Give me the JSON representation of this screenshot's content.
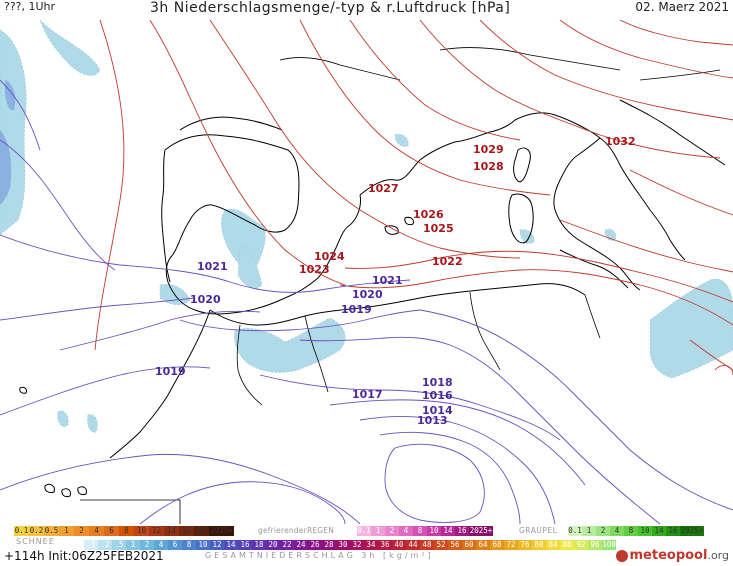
{
  "header": {
    "run_label": "???, 1Uhr",
    "title": "3h Niederschlagsmenge/-typ & r.Luftdruck [hPa]",
    "date": "02. Maerz 2021"
  },
  "footer": {
    "run_info": "+114h Init:06Z25FEB2021",
    "brand": "meteopool",
    "brand_suffix": ".org"
  },
  "legend": {
    "snow_label": "SCHNEE",
    "snow_values": [
      "0.1",
      "0.2",
      "0.5",
      "1",
      "2",
      "4",
      "6",
      "8",
      "10",
      "12",
      "14",
      "16",
      "18",
      "2025+"
    ],
    "freezing_rain_label": "gefrierenderREGEN",
    "freezing_rain_values": [
      "0.1",
      "1",
      "2",
      "4",
      "8",
      "10",
      "14",
      "16",
      "2025+"
    ],
    "graupel_label": "GRAUPEL",
    "graupel_values": [
      "0.1",
      "1",
      "2",
      "4",
      "8",
      "10",
      "14",
      "16",
      "2025+"
    ],
    "total_label": "GESAMTNIEDERSCHLAG 3h [kg/m²]",
    "total_values": [
      ".1",
      ".2",
      ".5",
      "1",
      "2",
      "4",
      "6",
      "8",
      "10",
      "12",
      "14",
      "16",
      "18",
      "20",
      "22",
      "24",
      "26",
      "28",
      "30",
      "32",
      "34",
      "36",
      "40",
      "44",
      "48",
      "52",
      "56",
      "60",
      "64",
      "68",
      "72",
      "76",
      "80",
      "84",
      "88",
      "92",
      "96",
      "100"
    ],
    "colors": {
      "snow": [
        "#f4d03f",
        "#f5c242",
        "#f3b13b",
        "#f0a030",
        "#ec8f28",
        "#e67e22",
        "#dc6b1e",
        "#d35400",
        "#c0451a",
        "#a93816",
        "#8e2f13",
        "#782610",
        "#5e1e0c",
        "#3d1408"
      ],
      "freezing": [
        "#f5b7e0",
        "#ef9fd6",
        "#e884cb",
        "#e06ac0",
        "#d651b5",
        "#c73ca6",
        "#b52a94",
        "#a01c80",
        "#85116b"
      ],
      "graupel": [
        "#d5f5c0",
        "#b8eca0",
        "#9be280",
        "#7ed860",
        "#62cd44",
        "#46c22c",
        "#33ab1c",
        "#249012",
        "#17750a"
      ],
      "total": [
        "#d6eef7",
        "#b8e2f0",
        "#9dd4ea",
        "#83c6e4",
        "#6fb7de",
        "#5ea6d8",
        "#5394d2",
        "#4d82cc",
        "#4a70c6",
        "#4a5ec0",
        "#4e4dba",
        "#5540b4",
        "#5e34ae",
        "#6a2aa8",
        "#7521a0",
        "#7f1a96",
        "#89148a",
        "#92107c",
        "#9b0e6e",
        "#a4105f",
        "#ad1450",
        "#b51a42",
        "#bc2236",
        "#c32c2c",
        "#ca3a24",
        "#d04a1e",
        "#d65c1a",
        "#db6e18",
        "#e08118",
        "#e4941a",
        "#e8a71e",
        "#ebba26",
        "#eecc30",
        "#f0dc3c",
        "#f0e84a",
        "#d8ec5a",
        "#b8ea6a",
        "#98e47a"
      ]
    }
  },
  "map": {
    "pressure_high_color": "#b22222",
    "pressure_low_color": "#5b3fb0",
    "coast_color": "#000000",
    "labels_high": [
      {
        "id": "p1032",
        "text": "1032"
      },
      {
        "id": "p1029",
        "text": "1029"
      },
      {
        "id": "p1028",
        "text": "1028"
      },
      {
        "id": "p1027",
        "text": "1027"
      },
      {
        "id": "p1026",
        "text": "1026"
      },
      {
        "id": "p1025",
        "text": "1025"
      },
      {
        "id": "p1024",
        "text": "1024"
      },
      {
        "id": "p1023",
        "text": "1023"
      },
      {
        "id": "p1022",
        "text": "1022"
      }
    ],
    "labels_low": [
      {
        "id": "p1021a",
        "text": "1021"
      },
      {
        "id": "p1021b",
        "text": "1021"
      },
      {
        "id": "p1020a",
        "text": "1020"
      },
      {
        "id": "p1020b",
        "text": "1020"
      },
      {
        "id": "p1019a",
        "text": "1019"
      },
      {
        "id": "p1019b",
        "text": "1019"
      },
      {
        "id": "p1018",
        "text": "1018"
      },
      {
        "id": "p1017",
        "text": "1017"
      },
      {
        "id": "p1016",
        "text": "1016"
      },
      {
        "id": "p1014",
        "text": "1014"
      },
      {
        "id": "p1013",
        "text": "1013"
      }
    ]
  }
}
